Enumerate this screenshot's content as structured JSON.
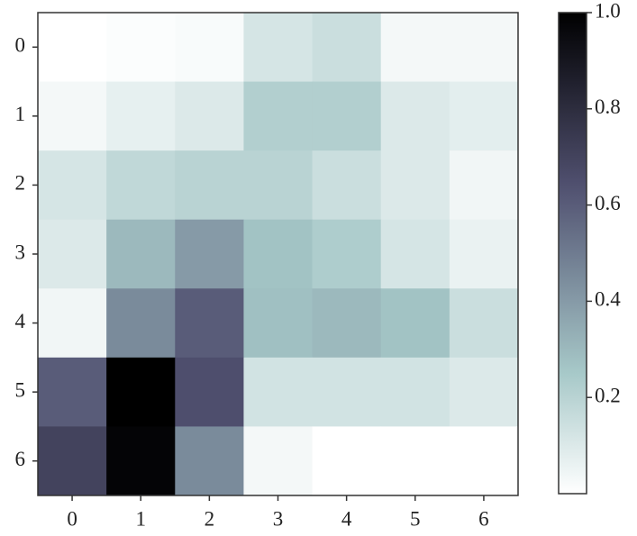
{
  "chart_data": {
    "type": "heatmap",
    "colormap": "bone_r",
    "x_categories": [
      "0",
      "1",
      "2",
      "3",
      "4",
      "5",
      "6"
    ],
    "y_categories": [
      "0",
      "1",
      "2",
      "3",
      "4",
      "5",
      "6"
    ],
    "values": [
      [
        0.0,
        0.01,
        0.02,
        0.12,
        0.15,
        0.03,
        0.03
      ],
      [
        0.03,
        0.07,
        0.1,
        0.22,
        0.22,
        0.1,
        0.08
      ],
      [
        0.12,
        0.18,
        0.2,
        0.2,
        0.15,
        0.1,
        0.04
      ],
      [
        0.1,
        0.3,
        0.4,
        0.27,
        0.23,
        0.12,
        0.06
      ],
      [
        0.04,
        0.45,
        0.6,
        0.28,
        0.3,
        0.27,
        0.15
      ],
      [
        0.6,
        1.0,
        0.65,
        0.13,
        0.13,
        0.13,
        0.1
      ],
      [
        0.7,
        0.98,
        0.45,
        0.03,
        0.0,
        0.0,
        0.0
      ]
    ],
    "clim": [
      0,
      1
    ],
    "cticks": [
      0.2,
      0.4,
      0.6,
      0.8,
      {
        "value": 1,
        "label": "1.0"
      }
    ]
  }
}
